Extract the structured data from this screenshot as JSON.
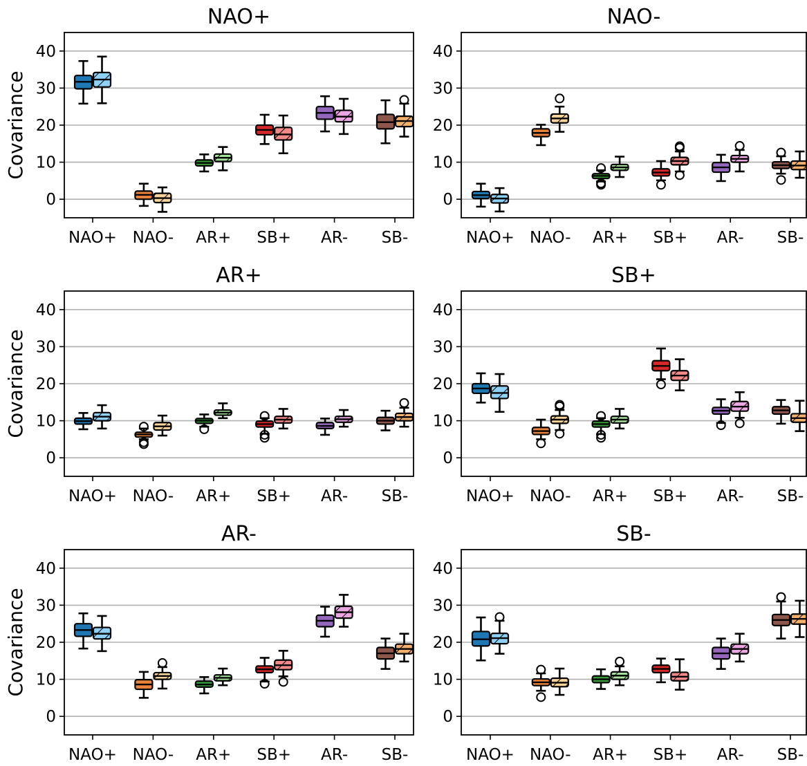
{
  "chart_data": [
    {
      "type": "box",
      "title": "NAO+",
      "ylabel": "Covariance",
      "categories": [
        "NAO+",
        "NAO-",
        "AR+",
        "SB+",
        "AR-",
        "SB-"
      ],
      "ylim": [
        -5,
        45
      ],
      "yticks": [
        0,
        10,
        20,
        30,
        40
      ],
      "grid": "y",
      "series": [
        {
          "boxes": [
            {
              "whislo": 25.8,
              "q1": 29.8,
              "med": 31.7,
              "q3": 33.4,
              "whishi": 37.3,
              "fliers": []
            },
            {
              "whislo": -1.8,
              "q1": 0.0,
              "med": 1.2,
              "q3": 2.2,
              "whishi": 4.2,
              "fliers": []
            },
            {
              "whislo": 7.5,
              "q1": 9.0,
              "med": 9.8,
              "q3": 10.6,
              "whishi": 12.1,
              "fliers": []
            },
            {
              "whislo": 14.9,
              "q1": 17.4,
              "med": 18.7,
              "q3": 20.0,
              "whishi": 22.8,
              "fliers": []
            },
            {
              "whislo": 18.3,
              "q1": 21.6,
              "med": 23.3,
              "q3": 25.0,
              "whishi": 27.8,
              "fliers": []
            },
            {
              "whislo": 15.1,
              "q1": 19.0,
              "med": 20.8,
              "q3": 22.9,
              "whishi": 26.7,
              "fliers": []
            }
          ]
        },
        {
          "boxes": [
            {
              "whislo": 25.9,
              "q1": 30.3,
              "med": 32.3,
              "q3": 34.2,
              "whishi": 38.5,
              "fliers": []
            },
            {
              "whislo": -3.4,
              "q1": -0.9,
              "med": 0.3,
              "q3": 1.6,
              "whishi": 3.2,
              "fliers": []
            },
            {
              "whislo": 7.8,
              "q1": 10.2,
              "med": 11.2,
              "q3": 12.2,
              "whishi": 14.1,
              "fliers": []
            },
            {
              "whislo": 12.4,
              "q1": 16.0,
              "med": 17.5,
              "q3": 19.4,
              "whishi": 22.6,
              "fliers": []
            },
            {
              "whislo": 17.6,
              "q1": 20.9,
              "med": 22.3,
              "q3": 24.0,
              "whishi": 27.1,
              "fliers": []
            },
            {
              "whislo": 16.9,
              "q1": 19.6,
              "med": 21.1,
              "q3": 22.4,
              "whishi": 25.8,
              "fliers": [
                26.8
              ]
            }
          ]
        }
      ]
    },
    {
      "type": "box",
      "title": "NAO-",
      "ylabel": "",
      "categories": [
        "NAO+",
        "NAO-",
        "AR+",
        "SB+",
        "AR-",
        "SB-"
      ],
      "ylim": [
        -5,
        45
      ],
      "yticks": [
        0,
        10,
        20,
        30,
        40
      ],
      "grid": "y",
      "series": [
        {
          "boxes": [
            {
              "whislo": -2.0,
              "q1": 0.2,
              "med": 1.1,
              "q3": 2.1,
              "whishi": 4.2,
              "fliers": []
            },
            {
              "whislo": 14.6,
              "q1": 16.9,
              "med": 17.9,
              "q3": 19.0,
              "whishi": 20.1,
              "fliers": []
            },
            {
              "whislo": 4.8,
              "q1": 5.6,
              "med": 6.3,
              "q3": 6.9,
              "whishi": 7.8,
              "fliers": [
                3.9,
                4.3,
                8.4
              ]
            },
            {
              "whislo": 5.1,
              "q1": 6.3,
              "med": 7.2,
              "q3": 8.2,
              "whishi": 10.3,
              "fliers": [
                3.9
              ]
            },
            {
              "whislo": 4.9,
              "q1": 7.3,
              "med": 8.6,
              "q3": 9.9,
              "whishi": 12.0,
              "fliers": []
            },
            {
              "whislo": 6.9,
              "q1": 8.3,
              "med": 9.2,
              "q3": 10.1,
              "whishi": 11.6,
              "fliers": [
                5.2,
                12.6
              ]
            }
          ]
        },
        {
          "boxes": [
            {
              "whislo": -3.3,
              "q1": -1.0,
              "med": 0.2,
              "q3": 1.3,
              "whishi": 3.0,
              "fliers": []
            },
            {
              "whislo": 18.2,
              "q1": 20.6,
              "med": 21.8,
              "q3": 23.0,
              "whishi": 25.0,
              "fliers": [
                27.2
              ]
            },
            {
              "whislo": 6.0,
              "q1": 7.8,
              "med": 8.6,
              "q3": 9.4,
              "whishi": 11.5,
              "fliers": []
            },
            {
              "whislo": 7.5,
              "q1": 9.3,
              "med": 10.3,
              "q3": 11.3,
              "whishi": 12.9,
              "fliers": [
                6.5,
                13.9,
                14.3
              ]
            },
            {
              "whislo": 7.5,
              "q1": 10.0,
              "med": 10.9,
              "q3": 11.8,
              "whishi": 13.3,
              "fliers": [
                14.4
              ]
            },
            {
              "whislo": 5.8,
              "q1": 8.0,
              "med": 9.1,
              "q3": 10.3,
              "whishi": 12.9,
              "fliers": []
            }
          ]
        }
      ]
    },
    {
      "type": "box",
      "title": "AR+",
      "ylabel": "Covariance",
      "categories": [
        "NAO+",
        "NAO-",
        "AR+",
        "SB+",
        "AR-",
        "SB-"
      ],
      "ylim": [
        -5,
        45
      ],
      "yticks": [
        0,
        10,
        20,
        30,
        40
      ],
      "grid": "y",
      "series": [
        {
          "boxes": [
            {
              "whislo": 7.7,
              "q1": 9.1,
              "med": 9.9,
              "q3": 10.7,
              "whishi": 12.1,
              "fliers": []
            },
            {
              "whislo": 5.0,
              "q1": 5.6,
              "med": 6.3,
              "q3": 6.9,
              "whishi": 7.9,
              "fliers": [
                3.7,
                4.2,
                8.4
              ]
            },
            {
              "whislo": 8.4,
              "q1": 9.3,
              "med": 10.0,
              "q3": 10.6,
              "whishi": 11.7,
              "fliers": [
                7.7
              ]
            },
            {
              "whislo": 6.5,
              "q1": 8.3,
              "med": 9.1,
              "q3": 9.9,
              "whishi": 10.7,
              "fliers": [
                5.4,
                6.2,
                11.3
              ]
            },
            {
              "whislo": 6.2,
              "q1": 7.9,
              "med": 8.6,
              "q3": 9.5,
              "whishi": 10.6,
              "fliers": []
            },
            {
              "whislo": 7.4,
              "q1": 9.1,
              "med": 10.0,
              "q3": 10.9,
              "whishi": 12.7,
              "fliers": []
            }
          ]
        },
        {
          "boxes": [
            {
              "whislo": 7.9,
              "q1": 10.0,
              "med": 11.1,
              "q3": 12.2,
              "whishi": 14.2,
              "fliers": []
            },
            {
              "whislo": 6.0,
              "q1": 7.5,
              "med": 8.5,
              "q3": 9.5,
              "whishi": 11.4,
              "fliers": []
            },
            {
              "whislo": 10.7,
              "q1": 11.5,
              "med": 12.2,
              "q3": 12.9,
              "whishi": 14.7,
              "fliers": []
            },
            {
              "whislo": 7.9,
              "q1": 9.4,
              "med": 10.3,
              "q3": 11.2,
              "whishi": 13.2,
              "fliers": []
            },
            {
              "whislo": 8.4,
              "q1": 9.6,
              "med": 10.4,
              "q3": 11.2,
              "whishi": 12.9,
              "fliers": []
            },
            {
              "whislo": 8.4,
              "q1": 10.0,
              "med": 11.0,
              "q3": 12.0,
              "whishi": 13.5,
              "fliers": [
                14.8
              ]
            }
          ]
        }
      ]
    },
    {
      "type": "box",
      "title": "SB+",
      "ylabel": "",
      "categories": [
        "NAO+",
        "NAO-",
        "AR+",
        "SB+",
        "AR-",
        "SB-"
      ],
      "ylim": [
        -5,
        45
      ],
      "yticks": [
        0,
        10,
        20,
        30,
        40
      ],
      "grid": "y",
      "series": [
        {
          "boxes": [
            {
              "whislo": 14.9,
              "q1": 17.4,
              "med": 18.7,
              "q3": 20.0,
              "whishi": 22.8,
              "fliers": []
            },
            {
              "whislo": 5.0,
              "q1": 6.3,
              "med": 7.2,
              "q3": 8.2,
              "whishi": 10.3,
              "fliers": [
                3.9
              ]
            },
            {
              "whislo": 6.4,
              "q1": 8.3,
              "med": 9.1,
              "q3": 9.9,
              "whishi": 10.7,
              "fliers": [
                5.4,
                6.2,
                11.3
              ]
            },
            {
              "whislo": 21.2,
              "q1": 23.5,
              "med": 24.8,
              "q3": 26.2,
              "whishi": 29.5,
              "fliers": [
                19.8
              ]
            },
            {
              "whislo": 9.4,
              "q1": 11.8,
              "med": 12.7,
              "q3": 13.6,
              "whishi": 15.8,
              "fliers": [
                8.8
              ]
            },
            {
              "whislo": 9.2,
              "q1": 11.8,
              "med": 12.8,
              "q3": 13.8,
              "whishi": 15.6,
              "fliers": []
            }
          ]
        },
        {
          "boxes": [
            {
              "whislo": 12.4,
              "q1": 16.0,
              "med": 17.5,
              "q3": 19.4,
              "whishi": 22.6,
              "fliers": []
            },
            {
              "whislo": 7.5,
              "q1": 9.3,
              "med": 10.3,
              "q3": 11.3,
              "whishi": 12.9,
              "fliers": [
                6.5,
                13.9,
                14.3
              ]
            },
            {
              "whislo": 7.9,
              "q1": 9.4,
              "med": 10.3,
              "q3": 11.2,
              "whishi": 13.2,
              "fliers": []
            },
            {
              "whislo": 18.2,
              "q1": 20.9,
              "med": 22.2,
              "q3": 23.5,
              "whishi": 26.6,
              "fliers": []
            },
            {
              "whislo": 10.8,
              "q1": 12.6,
              "med": 13.8,
              "q3": 15.2,
              "whishi": 17.7,
              "fliers": [
                9.3
              ]
            },
            {
              "whislo": 7.2,
              "q1": 9.6,
              "med": 10.7,
              "q3": 11.9,
              "whishi": 15.4,
              "fliers": []
            }
          ]
        }
      ]
    },
    {
      "type": "box",
      "title": "AR-",
      "ylabel": "Covariance",
      "categories": [
        "NAO+",
        "NAO-",
        "AR+",
        "SB+",
        "AR-",
        "SB-"
      ],
      "ylim": [
        -5,
        45
      ],
      "yticks": [
        0,
        10,
        20,
        30,
        40
      ],
      "grid": "y",
      "series": [
        {
          "boxes": [
            {
              "whislo": 18.3,
              "q1": 21.6,
              "med": 23.3,
              "q3": 25.0,
              "whishi": 27.8,
              "fliers": []
            },
            {
              "whislo": 5.0,
              "q1": 7.3,
              "med": 8.6,
              "q3": 9.9,
              "whishi": 12.0,
              "fliers": []
            },
            {
              "whislo": 6.2,
              "q1": 7.9,
              "med": 8.6,
              "q3": 9.5,
              "whishi": 10.6,
              "fliers": []
            },
            {
              "whislo": 9.4,
              "q1": 11.8,
              "med": 12.7,
              "q3": 13.6,
              "whishi": 15.8,
              "fliers": [
                8.8
              ]
            },
            {
              "whislo": 21.5,
              "q1": 24.2,
              "med": 25.8,
              "q3": 27.3,
              "whishi": 29.6,
              "fliers": []
            },
            {
              "whislo": 12.8,
              "q1": 15.5,
              "med": 17.0,
              "q3": 18.6,
              "whishi": 21.0,
              "fliers": []
            }
          ]
        },
        {
          "boxes": [
            {
              "whislo": 17.6,
              "q1": 20.9,
              "med": 22.3,
              "q3": 24.0,
              "whishi": 27.1,
              "fliers": []
            },
            {
              "whislo": 7.5,
              "q1": 10.0,
              "med": 10.9,
              "q3": 11.8,
              "whishi": 13.3,
              "fliers": [
                14.4
              ]
            },
            {
              "whislo": 8.4,
              "q1": 9.6,
              "med": 10.4,
              "q3": 11.2,
              "whishi": 12.9,
              "fliers": []
            },
            {
              "whislo": 10.8,
              "q1": 12.6,
              "med": 13.8,
              "q3": 15.2,
              "whishi": 17.7,
              "fliers": [
                9.3
              ]
            },
            {
              "whislo": 24.2,
              "q1": 26.5,
              "med": 28.1,
              "q3": 29.7,
              "whishi": 32.8,
              "fliers": []
            },
            {
              "whislo": 14.8,
              "q1": 16.9,
              "med": 18.2,
              "q3": 19.5,
              "whishi": 22.3,
              "fliers": []
            }
          ]
        }
      ]
    },
    {
      "type": "box",
      "title": "SB-",
      "ylabel": "",
      "categories": [
        "NAO+",
        "NAO-",
        "AR+",
        "SB+",
        "AR-",
        "SB-"
      ],
      "ylim": [
        -5,
        45
      ],
      "yticks": [
        0,
        10,
        20,
        30,
        40
      ],
      "grid": "y",
      "series": [
        {
          "boxes": [
            {
              "whislo": 15.1,
              "q1": 19.0,
              "med": 20.8,
              "q3": 22.9,
              "whishi": 26.7,
              "fliers": []
            },
            {
              "whislo": 6.9,
              "q1": 8.3,
              "med": 9.2,
              "q3": 10.1,
              "whishi": 11.6,
              "fliers": [
                5.2,
                12.6
              ]
            },
            {
              "whislo": 7.4,
              "q1": 9.1,
              "med": 10.0,
              "q3": 10.9,
              "whishi": 12.7,
              "fliers": []
            },
            {
              "whislo": 9.2,
              "q1": 11.8,
              "med": 12.8,
              "q3": 13.8,
              "whishi": 15.6,
              "fliers": []
            },
            {
              "whislo": 12.8,
              "q1": 15.5,
              "med": 17.0,
              "q3": 18.6,
              "whishi": 21.0,
              "fliers": []
            },
            {
              "whislo": 21.0,
              "q1": 24.5,
              "med": 26.0,
              "q3": 27.5,
              "whishi": 31.0,
              "fliers": [
                32.2
              ]
            }
          ]
        },
        {
          "boxes": [
            {
              "whislo": 16.9,
              "q1": 19.6,
              "med": 21.1,
              "q3": 22.4,
              "whishi": 25.8,
              "fliers": [
                26.8
              ]
            },
            {
              "whislo": 5.8,
              "q1": 8.0,
              "med": 9.1,
              "q3": 10.3,
              "whishi": 12.9,
              "fliers": []
            },
            {
              "whislo": 8.4,
              "q1": 10.0,
              "med": 11.0,
              "q3": 12.0,
              "whishi": 13.5,
              "fliers": [
                14.8
              ]
            },
            {
              "whislo": 7.2,
              "q1": 9.6,
              "med": 10.7,
              "q3": 11.9,
              "whishi": 15.4,
              "fliers": []
            },
            {
              "whislo": 14.8,
              "q1": 16.9,
              "med": 18.2,
              "q3": 19.5,
              "whishi": 22.3,
              "fliers": []
            },
            {
              "whislo": 21.4,
              "q1": 24.9,
              "med": 26.3,
              "q3": 27.6,
              "whishi": 31.2,
              "fliers": []
            }
          ]
        }
      ]
    }
  ],
  "colors": {
    "NAO+": [
      "#1f77b4",
      "#8fd0f5"
    ],
    "NAO-": [
      "#e8823a",
      "#f8d49a"
    ],
    "AR+": [
      "#3a9a3a",
      "#a6e39a"
    ],
    "SB+": [
      "#d62728",
      "#f28a8a"
    ],
    "AR-": [
      "#9467bd",
      "#e9a6e0"
    ],
    "SB-": [
      "#8c564b",
      "#f5b06a"
    ]
  }
}
